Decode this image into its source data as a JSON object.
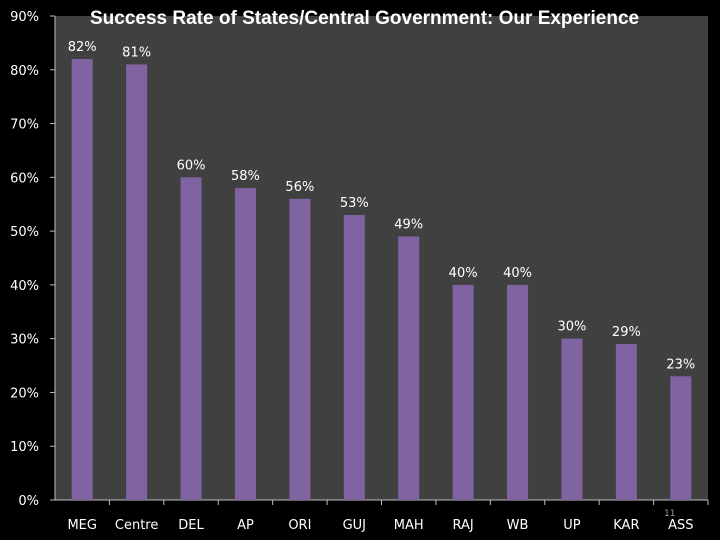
{
  "colors": {
    "background": "#000000",
    "plot_area": "#404040",
    "bar": "#8064a2",
    "text": "#ffffff",
    "axis": "#bfbfbf",
    "slide_number": "#9a9a9a"
  },
  "slide_number": "11",
  "chart_data": {
    "type": "bar",
    "title": "Success Rate of States/Central Government: Our Experience",
    "xlabel": "",
    "ylabel": "",
    "categories": [
      "MEG",
      "Centre",
      "DEL",
      "AP",
      "ORI",
      "GUJ",
      "MAH",
      "RAJ",
      "WB",
      "UP",
      "KAR",
      "ASS"
    ],
    "values": [
      82,
      81,
      60,
      58,
      56,
      53,
      49,
      40,
      40,
      30,
      29,
      23
    ],
    "data_labels": [
      "82%",
      "81%",
      "60%",
      "58%",
      "56%",
      "53%",
      "49%",
      "40%",
      "40%",
      "30%",
      "29%",
      "23%"
    ],
    "ylim": [
      0,
      90
    ],
    "yticks": [
      0,
      10,
      20,
      30,
      40,
      50,
      60,
      70,
      80,
      90
    ],
    "ytick_labels": [
      "0%",
      "10%",
      "20%",
      "30%",
      "40%",
      "50%",
      "60%",
      "70%",
      "80%",
      "90%"
    ],
    "grid": false,
    "legend": "none"
  }
}
